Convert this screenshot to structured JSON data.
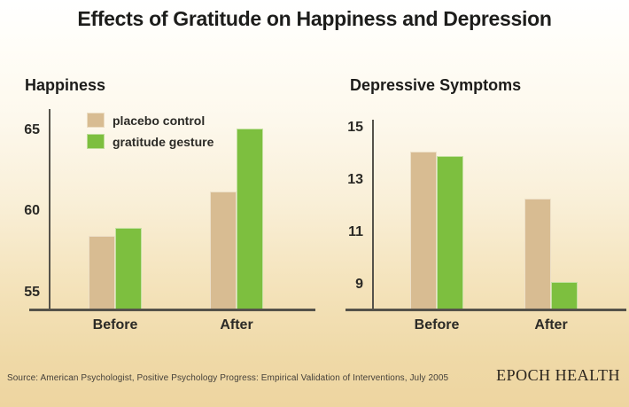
{
  "page": {
    "title": "Effects of Gratitude on Happiness and Depression",
    "source": "Source: American Psychologist, Positive Psychology Progress: Empirical Validation of Interventions, July 2005",
    "brand": "EPOCH HEALTH"
  },
  "colors": {
    "placebo": "#d8bc92",
    "gratitude": "#7dbf3f",
    "axis": "#55524a",
    "background_top": "#ffffff",
    "background_bottom": "#eed5a0",
    "text": "#1d1d1b"
  },
  "chart_data": [
    {
      "type": "bar",
      "title": "Happiness",
      "categories": [
        "Before",
        "After"
      ],
      "series": [
        {
          "name": "placebo control",
          "color": "#d8bc92",
          "values": [
            58.5,
            61.2
          ]
        },
        {
          "name": "gratitude gesture",
          "color": "#7dbf3f",
          "values": [
            59.0,
            65.1
          ]
        }
      ],
      "yticks": [
        55,
        60,
        65
      ],
      "ylim": [
        54.0,
        66.3
      ],
      "grid": false,
      "legend_position": "top-left"
    },
    {
      "type": "bar",
      "title": "Depressive Symptoms",
      "categories": [
        "Before",
        "After"
      ],
      "series": [
        {
          "name": "placebo control",
          "color": "#d8bc92",
          "values": [
            14.1,
            12.3
          ]
        },
        {
          "name": "gratitude gesture",
          "color": "#7dbf3f",
          "values": [
            13.9,
            9.1
          ]
        }
      ],
      "yticks": [
        9,
        11,
        13,
        15
      ],
      "ylim": [
        8.1,
        15.3
      ],
      "grid": false,
      "legend_position": "none"
    }
  ]
}
